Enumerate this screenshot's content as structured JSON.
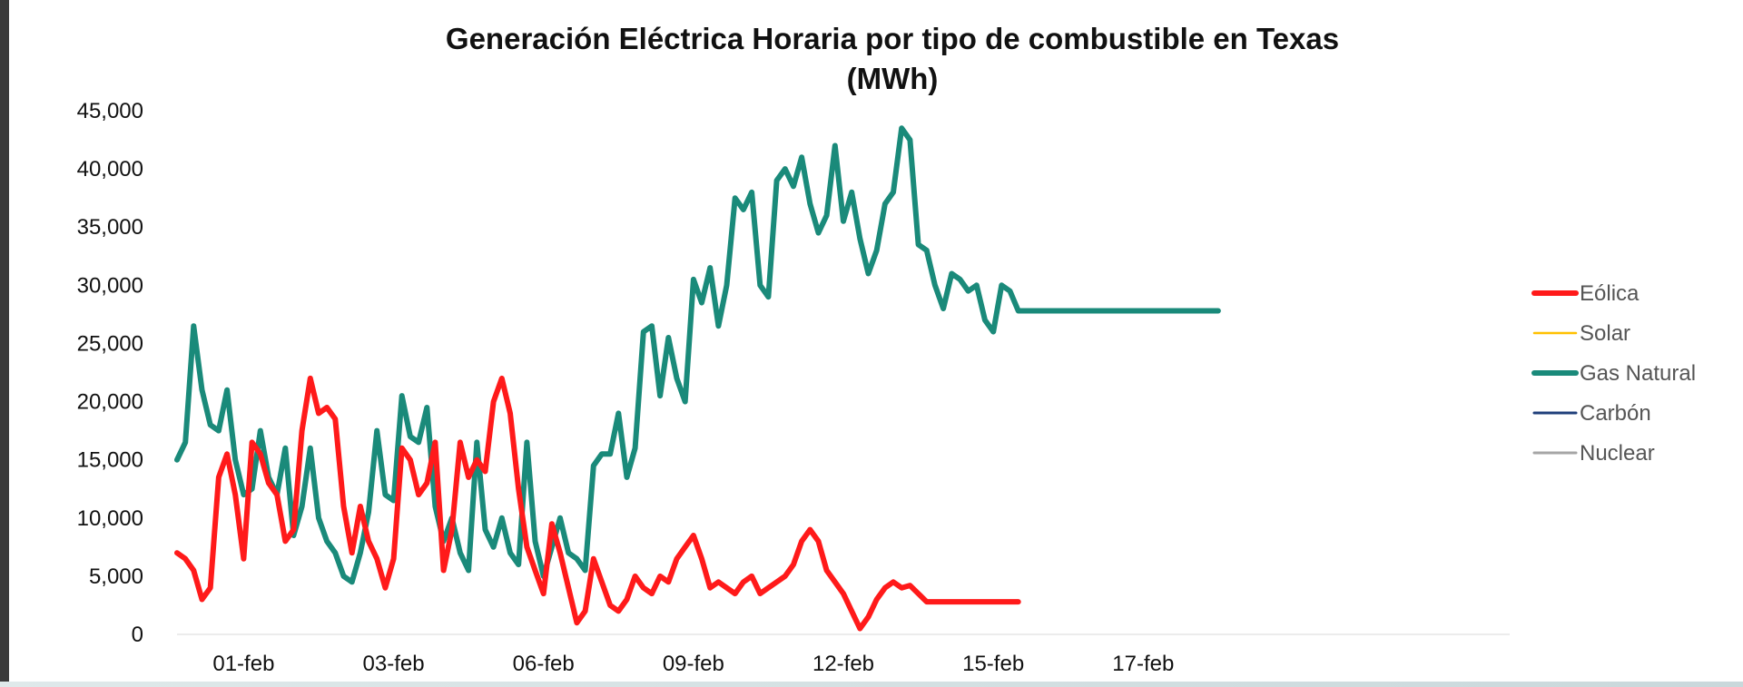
{
  "chart_data": {
    "type": "line",
    "title": "Generación Eléctrica Horaria por tipo de combustible en Texas",
    "subtitle": "(MWh)",
    "xlabel": "",
    "ylabel": "",
    "ylim": [
      0,
      45000
    ],
    "ytick_labels": [
      "0",
      "5,000",
      "10,000",
      "15,000",
      "20,000",
      "25,000",
      "30,000",
      "35,000",
      "40,000",
      "45,000"
    ],
    "yticks": [
      0,
      5000,
      10000,
      15000,
      20000,
      25000,
      30000,
      35000,
      40000,
      45000
    ],
    "x_range": [
      0,
      160
    ],
    "xtick_labels": [
      "01-feb",
      "03-feb",
      "06-feb",
      "09-feb",
      "12-feb",
      "15-feb",
      "17-feb"
    ],
    "xticks": [
      8,
      26,
      44,
      62,
      80,
      98,
      116
    ],
    "grid": false,
    "legend_position": "right",
    "series": [
      {
        "name": "Gas Natural",
        "color": "#1a8a7a",
        "width": 6,
        "x": [
          0,
          1,
          2,
          3,
          4,
          5,
          6,
          7,
          8,
          9,
          10,
          11,
          12,
          13,
          14,
          15,
          16,
          17,
          18,
          19,
          20,
          21,
          22,
          23,
          24,
          25,
          26,
          27,
          28,
          29,
          30,
          31,
          32,
          33,
          34,
          35,
          36,
          37,
          38,
          39,
          40,
          41,
          42,
          43,
          44,
          45,
          46,
          47,
          48,
          49,
          50,
          51,
          52,
          53,
          54,
          55,
          56,
          57,
          58,
          59,
          60,
          61,
          62,
          63,
          64,
          65,
          66,
          67,
          68,
          69,
          70,
          71,
          72,
          73,
          74,
          75,
          76,
          77,
          78,
          79,
          80,
          81,
          82,
          83,
          84,
          85,
          86,
          87,
          88,
          89,
          90,
          91,
          92,
          93,
          94,
          95,
          96,
          97,
          98,
          99,
          100,
          101,
          102,
          103,
          104,
          105,
          106,
          107,
          108,
          109,
          110,
          111,
          112,
          113,
          114,
          115,
          116,
          117,
          118,
          119,
          120,
          121,
          122,
          123,
          124,
          125
        ],
        "y": [
          15000,
          16500,
          26500,
          21000,
          18000,
          17500,
          21000,
          15000,
          12000,
          12500,
          17500,
          13500,
          12000,
          16000,
          8500,
          11000,
          16000,
          10000,
          8000,
          7000,
          5000,
          4500,
          7000,
          10500,
          17500,
          12000,
          11500,
          20500,
          17000,
          16500,
          19500,
          11000,
          8000,
          10000,
          7000,
          5500,
          16500,
          9000,
          7500,
          10000,
          7000,
          6000,
          16500,
          8000,
          5000,
          7500,
          10000,
          7000,
          6500,
          5500,
          14500,
          15500,
          15500,
          19000,
          13500,
          16000,
          26000,
          26500,
          20500,
          25500,
          22000,
          20000,
          30500,
          28500,
          31500,
          26500,
          30000,
          37500,
          36500,
          38000,
          30000,
          29000,
          39000,
          40000,
          38500,
          41000,
          37000,
          34500,
          36000,
          42000,
          35500,
          38000,
          34000,
          31000,
          33000,
          37000,
          38000,
          43500,
          42500,
          33500,
          33000,
          30000,
          28000,
          31000,
          30500,
          29500,
          30000,
          27000,
          26000,
          30000,
          29500,
          27800,
          27800,
          27800,
          27800,
          27800,
          27800,
          27800,
          27800,
          27800,
          27800,
          27800,
          27800,
          27800,
          27800,
          27800,
          27800,
          27800,
          27800,
          27800,
          27800,
          27800,
          27800,
          27800,
          27800,
          27800
        ]
      },
      {
        "name": "Eólica",
        "color": "#ff1a1a",
        "width": 6,
        "x": [
          0,
          1,
          2,
          3,
          4,
          5,
          6,
          7,
          8,
          9,
          10,
          11,
          12,
          13,
          14,
          15,
          16,
          17,
          18,
          19,
          20,
          21,
          22,
          23,
          24,
          25,
          26,
          27,
          28,
          29,
          30,
          31,
          32,
          33,
          34,
          35,
          36,
          37,
          38,
          39,
          40,
          41,
          42,
          43,
          44,
          45,
          46,
          47,
          48,
          49,
          50,
          51,
          52,
          53,
          54,
          55,
          56,
          57,
          58,
          59,
          60,
          61,
          62,
          63,
          64,
          65,
          66,
          67,
          68,
          69,
          70,
          71,
          72,
          73,
          74,
          75,
          76,
          77,
          78,
          79,
          80,
          81,
          82,
          83,
          84,
          85,
          86,
          87,
          88,
          89,
          90,
          91,
          92,
          93,
          94,
          95,
          96,
          97,
          98,
          99,
          100,
          101
        ],
        "y": [
          7000,
          6500,
          5500,
          3000,
          4000,
          13500,
          15500,
          12000,
          6500,
          16500,
          15500,
          13000,
          12000,
          8000,
          9000,
          17500,
          22000,
          19000,
          19500,
          18500,
          11000,
          7000,
          11000,
          8000,
          6500,
          4000,
          6500,
          16000,
          15000,
          12000,
          13000,
          16500,
          5500,
          9000,
          16500,
          13500,
          15000,
          14000,
          20000,
          22000,
          19000,
          12500,
          7500,
          5500,
          3500,
          9500,
          7000,
          4000,
          1000,
          2000,
          6500,
          4500,
          2500,
          2000,
          3000,
          5000,
          4000,
          3500,
          5000,
          4500,
          6500,
          7500,
          8500,
          6500,
          4000,
          4500,
          4000,
          3500,
          4500,
          5000,
          3500,
          4000,
          4500,
          5000,
          6000,
          8000,
          9000,
          8000,
          5500,
          4500,
          3500,
          2000,
          500,
          1500,
          3000,
          4000,
          4500,
          4000,
          4200,
          3500,
          2800,
          2800,
          2800,
          2800,
          2800,
          2800,
          2800,
          2800,
          2800,
          2800,
          2800,
          2800
        ]
      },
      {
        "name": "Solar",
        "color": "#ffc000",
        "width": 2.5,
        "x": [],
        "y": []
      },
      {
        "name": "Carbón",
        "color": "#1f3f7a",
        "width": 3,
        "x": [],
        "y": []
      },
      {
        "name": "Nuclear",
        "color": "#a6a6a6",
        "width": 3,
        "x": [],
        "y": []
      }
    ]
  },
  "legend": {
    "items": [
      "Eólica",
      "Solar",
      "Gas Natural",
      "Carbón",
      "Nuclear"
    ],
    "colors": [
      "#ff1a1a",
      "#ffc000",
      "#1a8a7a",
      "#1f3f7a",
      "#a6a6a6"
    ]
  }
}
